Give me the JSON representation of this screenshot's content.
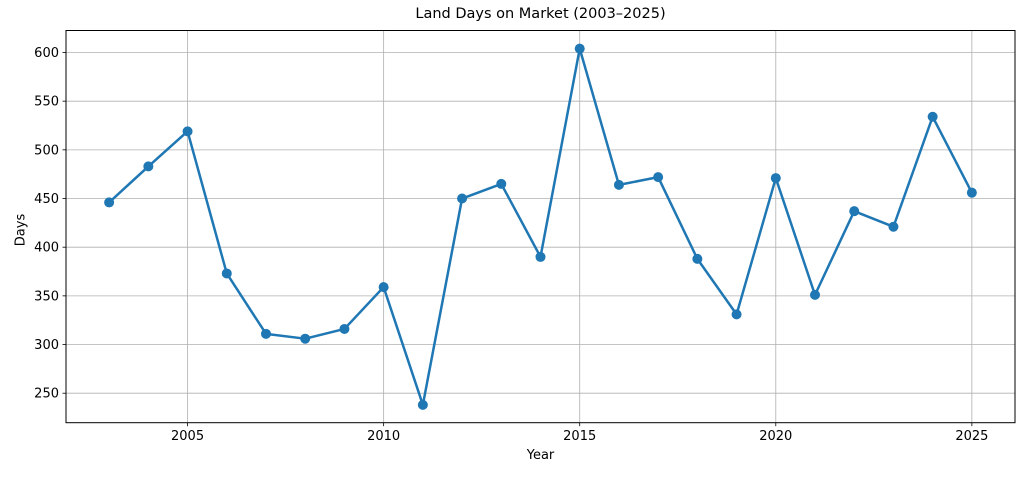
{
  "chart_data": {
    "type": "line",
    "title": "Land Days on Market (2003–2025)",
    "xlabel": "Year",
    "ylabel": "Days",
    "x": [
      2003,
      2004,
      2005,
      2006,
      2007,
      2008,
      2009,
      2010,
      2011,
      2012,
      2013,
      2014,
      2015,
      2016,
      2017,
      2018,
      2019,
      2020,
      2021,
      2022,
      2023,
      2024,
      2025
    ],
    "series": [
      {
        "name": "Land Days on Market",
        "values": [
          446,
          483,
          519,
          373,
          311,
          306,
          316,
          359,
          238,
          450,
          465,
          390,
          604,
          464,
          472,
          388,
          331,
          471,
          351,
          437,
          421,
          534,
          456
        ]
      }
    ],
    "x_ticks": [
      2005,
      2010,
      2015,
      2020,
      2025
    ],
    "y_ticks": [
      250,
      300,
      350,
      400,
      450,
      500,
      550,
      600
    ],
    "xlim": [
      2001.9,
      2026.1
    ],
    "ylim": [
      219.7,
      622.6
    ],
    "grid": true,
    "legend": "none",
    "line_color": "#1f77b4",
    "grid_color": "#b0b0b0",
    "axis_color": "#000000",
    "marker": "circle"
  }
}
